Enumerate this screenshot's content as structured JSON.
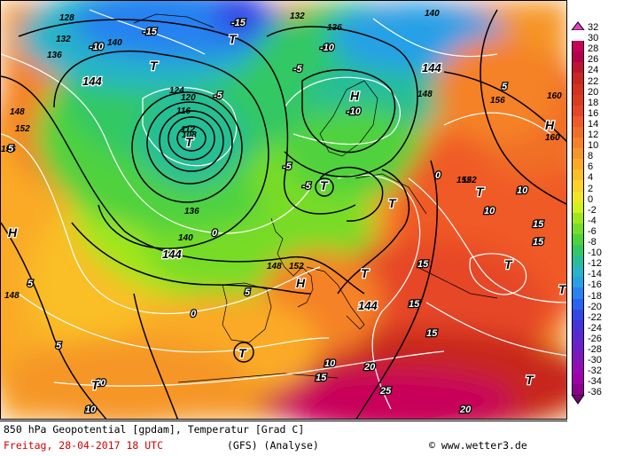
{
  "caption": {
    "title": "850 hPa Geopotential [gpdam], Temperatur [Grad C]",
    "date": "Freitag, 28-04-2017  18 UTC",
    "model": "(GFS)  (Analyse)",
    "site": "© www.wetter3.de"
  },
  "legend": {
    "items": [
      {
        "label": "32",
        "color": "#e040c8"
      },
      {
        "label": "30",
        "color": "#c8005a"
      },
      {
        "label": "28",
        "color": "#b4004a"
      },
      {
        "label": "26",
        "color": "#be1432"
      },
      {
        "label": "24",
        "color": "#c8281e"
      },
      {
        "label": "22",
        "color": "#d2321e"
      },
      {
        "label": "20",
        "color": "#dc3c1e"
      },
      {
        "label": "18",
        "color": "#e64628"
      },
      {
        "label": "16",
        "color": "#f05a28"
      },
      {
        "label": "14",
        "color": "#f06e28"
      },
      {
        "label": "12",
        "color": "#f58228"
      },
      {
        "label": "10",
        "color": "#f59628"
      },
      {
        "label": "8",
        "color": "#faaa28"
      },
      {
        "label": "6",
        "color": "#fabe28"
      },
      {
        "label": "4",
        "color": "#fad228"
      },
      {
        "label": "2",
        "color": "#f0e628"
      },
      {
        "label": "0",
        "color": "#d2f01e"
      },
      {
        "label": "-2",
        "color": "#a0e61e"
      },
      {
        "label": "-4",
        "color": "#78dc28"
      },
      {
        "label": "-6",
        "color": "#50d23c"
      },
      {
        "label": "-8",
        "color": "#32c864"
      },
      {
        "label": "-10",
        "color": "#28be96"
      },
      {
        "label": "-12",
        "color": "#28b4c8"
      },
      {
        "label": "-14",
        "color": "#28a0e6"
      },
      {
        "label": "-16",
        "color": "#2882f0"
      },
      {
        "label": "-18",
        "color": "#2864f0"
      },
      {
        "label": "-20",
        "color": "#3246e6"
      },
      {
        "label": "-22",
        "color": "#4632dc"
      },
      {
        "label": "-24",
        "color": "#5a28d2"
      },
      {
        "label": "-26",
        "color": "#6e1ec8"
      },
      {
        "label": "-28",
        "color": "#8214be"
      },
      {
        "label": "-30",
        "color": "#960ab4"
      },
      {
        "label": "-32",
        "color": "#a000aa"
      },
      {
        "label": "-34",
        "color": "#8c008c"
      },
      {
        "label": "-36",
        "color": "#780078"
      }
    ]
  },
  "pressure_centers": [
    {
      "label": "T",
      "kind": "low"
    },
    {
      "label": "T",
      "kind": "low"
    },
    {
      "label": "T",
      "kind": "low"
    },
    {
      "label": "T",
      "kind": "low"
    },
    {
      "label": "T",
      "kind": "low"
    },
    {
      "label": "T",
      "kind": "low"
    },
    {
      "label": "T",
      "kind": "low"
    },
    {
      "label": "T",
      "kind": "low"
    },
    {
      "label": "T",
      "kind": "low"
    },
    {
      "label": "T",
      "kind": "low"
    },
    {
      "label": "T",
      "kind": "low"
    },
    {
      "label": "T",
      "kind": "low"
    },
    {
      "label": "H",
      "kind": "high"
    },
    {
      "label": "H",
      "kind": "high"
    },
    {
      "label": "H",
      "kind": "high"
    },
    {
      "label": "H",
      "kind": "high"
    }
  ],
  "geopotential_labels": [
    "128",
    "132",
    "136",
    "140",
    "144",
    "148",
    "152",
    "156",
    "160",
    "124",
    "120",
    "116",
    "112",
    "108",
    "136",
    "140",
    "144",
    "148",
    "152",
    "156",
    "160",
    "132",
    "136",
    "140",
    "144",
    "148",
    "152",
    "144",
    "148",
    "152"
  ],
  "temperature_labels": [
    "-15",
    "-10",
    "-5",
    "0",
    "5",
    "10",
    "15",
    "20",
    "25",
    "-5",
    "-10",
    "-5",
    "0",
    "5",
    "10",
    "15",
    "20",
    "5",
    "10",
    "15",
    "15",
    "15",
    "15",
    "10",
    "5",
    "0",
    "-5",
    "-15",
    "-10",
    "10",
    "5"
  ]
}
